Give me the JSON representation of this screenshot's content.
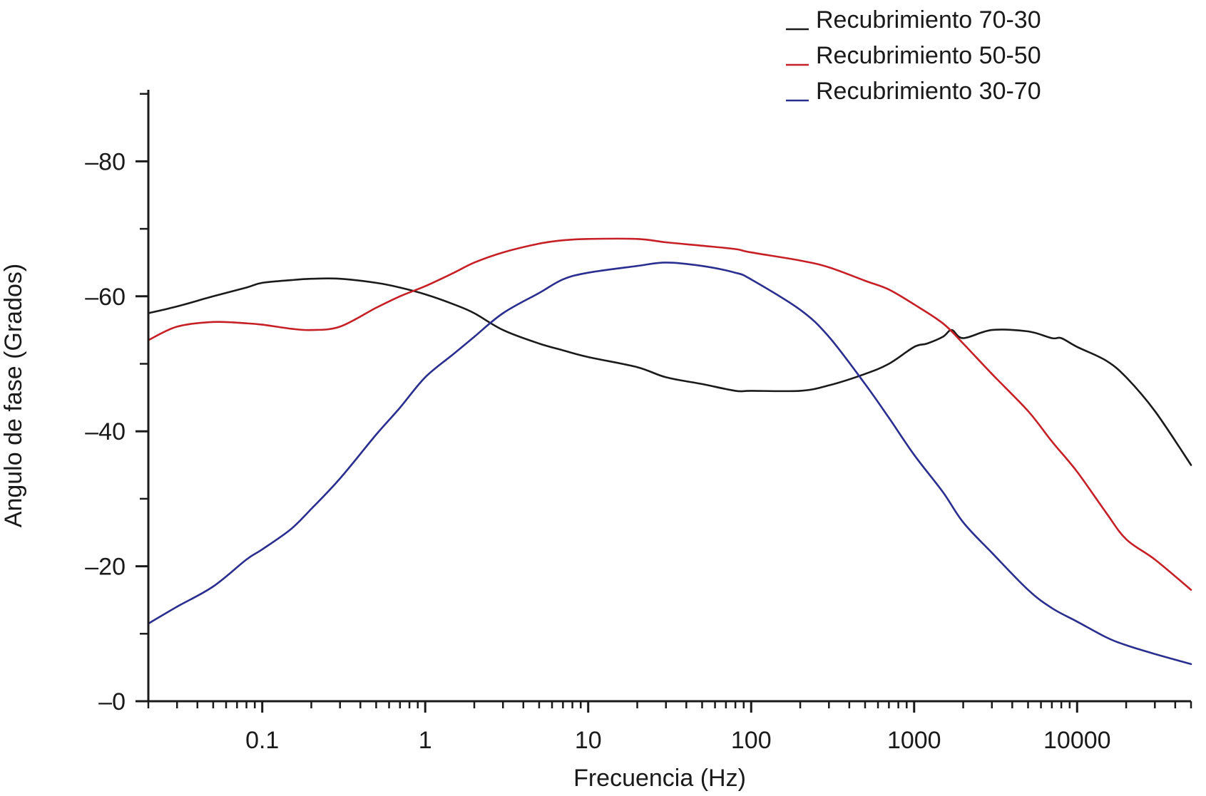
{
  "chart_data": {
    "type": "line",
    "title": "",
    "xlabel": "Frecuencia (Hz)",
    "ylabel": "Angulo de fase (Grados)",
    "xscale": "log",
    "xlim": [
      0.02,
      50000
    ],
    "ylim_label": "y tick labels printed as negative phase angle; magnitude increases upward",
    "ylim": [
      0,
      90
    ],
    "x_tick_labels": [
      "0.1",
      "1",
      "10",
      "100",
      "1000",
      "10000"
    ],
    "x_tick_values": [
      0.1,
      1,
      10,
      100,
      1000,
      10000
    ],
    "y_tick_labels": [
      "–0",
      "–20",
      "–40",
      "–60",
      "–80"
    ],
    "y_tick_values": [
      0,
      20,
      40,
      60,
      80
    ],
    "grid": false,
    "legend_position": "top-right",
    "series": [
      {
        "name": "Recubrimiento 70-30",
        "color": "#1a1a1a",
        "x": [
          0.02,
          0.03,
          0.05,
          0.08,
          0.1,
          0.15,
          0.2,
          0.3,
          0.5,
          0.7,
          1,
          1.5,
          2,
          3,
          5,
          7,
          10,
          20,
          30,
          50,
          80,
          100,
          200,
          300,
          500,
          700,
          1000,
          1200,
          1500,
          1700,
          2000,
          3000,
          5000,
          7000,
          8000,
          10000,
          15000,
          20000,
          30000,
          50000
        ],
        "y": [
          57.5,
          58.5,
          60,
          61.3,
          62,
          62.4,
          62.6,
          62.6,
          62,
          61.3,
          60.3,
          58.8,
          57.5,
          55,
          53,
          52,
          51,
          49.5,
          48,
          47,
          46,
          46,
          46,
          46.8,
          48.5,
          50,
          52.5,
          53,
          54,
          55,
          53.8,
          55,
          54.8,
          53.8,
          53.8,
          52.5,
          50.5,
          48,
          43,
          35
        ]
      },
      {
        "name": "Recubrimiento 50-50",
        "color": "#c62026",
        "x": [
          0.02,
          0.03,
          0.05,
          0.08,
          0.1,
          0.15,
          0.2,
          0.3,
          0.5,
          0.7,
          1,
          1.5,
          2,
          3,
          5,
          7,
          10,
          20,
          30,
          50,
          80,
          100,
          200,
          300,
          500,
          700,
          1000,
          1500,
          2000,
          3000,
          5000,
          7000,
          10000,
          15000,
          20000,
          30000,
          50000
        ],
        "y": [
          53.5,
          55.5,
          56.2,
          56,
          55.8,
          55.2,
          55,
          55.5,
          58.3,
          60,
          61.5,
          63.5,
          65,
          66.5,
          67.8,
          68.3,
          68.5,
          68.5,
          68,
          67.5,
          67,
          66.5,
          65.3,
          64.3,
          62.3,
          61,
          58.8,
          56,
          53,
          48.5,
          43,
          38.5,
          34,
          28,
          24,
          21,
          16.5
        ]
      },
      {
        "name": "Recubrimiento 30-70",
        "color": "#2a2e8f",
        "x": [
          0.02,
          0.03,
          0.05,
          0.08,
          0.1,
          0.15,
          0.2,
          0.3,
          0.5,
          0.7,
          1,
          1.5,
          2,
          3,
          5,
          7,
          10,
          20,
          30,
          50,
          80,
          100,
          200,
          300,
          500,
          700,
          1000,
          1500,
          2000,
          3000,
          5000,
          7000,
          10000,
          15000,
          20000,
          30000,
          50000
        ],
        "y": [
          11.5,
          14,
          17,
          21,
          22.5,
          25.5,
          28.5,
          33,
          39.5,
          43.5,
          48,
          51.5,
          54,
          57.5,
          60.5,
          62.5,
          63.5,
          64.5,
          65,
          64.5,
          63.5,
          62.5,
          58,
          54,
          47,
          42,
          36.5,
          31,
          26.5,
          22,
          16.5,
          13.8,
          11.8,
          9.5,
          8.3,
          7,
          5.5
        ]
      }
    ]
  }
}
